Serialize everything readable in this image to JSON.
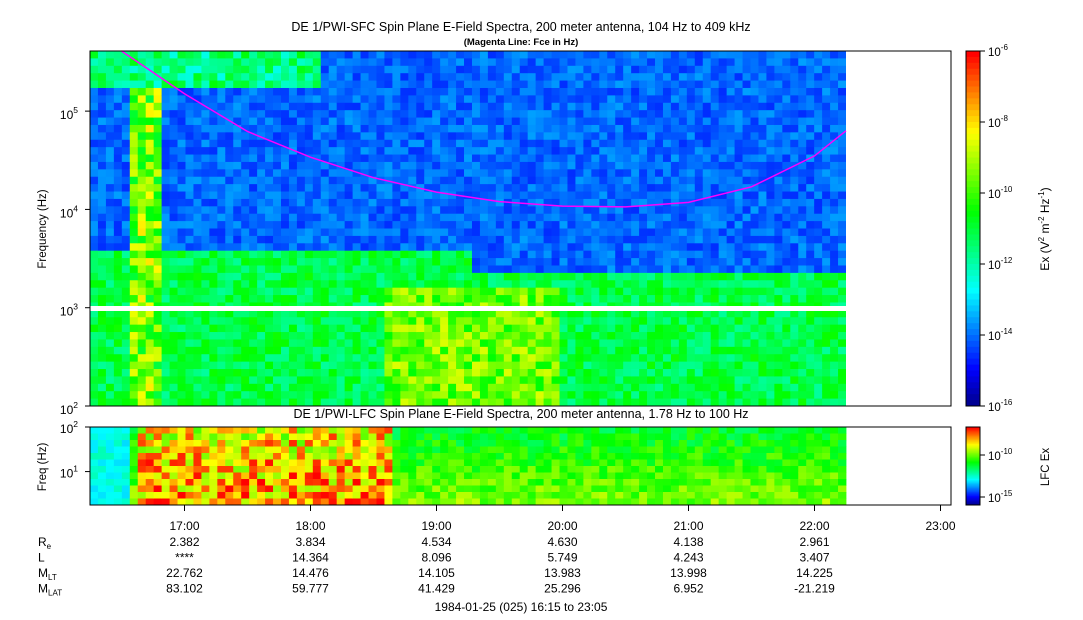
{
  "chart_data": [
    {
      "type": "heatmap",
      "title": "DE 1/PWI-SFC  Spin Plane E-Field Spectra, 200 meter antenna, 104 Hz to 409 kHz",
      "subtitle": "(Magenta Line: Fce in Hz)",
      "ylabel": "Frequency (Hz)",
      "yscale": "log",
      "ylim": [
        100,
        409000
      ],
      "yticks": [
        "10^2",
        "10^3",
        "10^4",
        "10^5"
      ],
      "colorbar": {
        "label": "Ex (V^2 m^-2 Hz^-1)",
        "scale": "log",
        "range": [
          1e-16,
          1e-06
        ],
        "ticks": [
          "10^-16",
          "10^-14",
          "10^-12",
          "10^-10",
          "10^-8",
          "10^-6"
        ]
      },
      "data_end_time": "22:15",
      "fce_line": {
        "name": "Fce",
        "color": "#ff00ff",
        "points": [
          {
            "t": "16:30",
            "f": 409000
          },
          {
            "t": "17:00",
            "f": 150000
          },
          {
            "t": "17:30",
            "f": 62000
          },
          {
            "t": "18:00",
            "f": 34000
          },
          {
            "t": "18:30",
            "f": 21000
          },
          {
            "t": "19:00",
            "f": 15000
          },
          {
            "t": "19:30",
            "f": 12000
          },
          {
            "t": "20:00",
            "f": 10800
          },
          {
            "t": "20:30",
            "f": 10600
          },
          {
            "t": "21:00",
            "f": 11800
          },
          {
            "t": "21:30",
            "f": 17000
          },
          {
            "t": "22:00",
            "f": 35000
          },
          {
            "t": "22:15",
            "f": 63000
          }
        ]
      }
    },
    {
      "type": "heatmap",
      "title": "DE 1/PWI-LFC  Spin Plane E-Field Spectra, 200 meter antenna, 1.78 Hz to 100 Hz",
      "ylabel": "Freq (Hz)",
      "yscale": "log",
      "ylim": [
        1.78,
        100
      ],
      "yticks": [
        "10^1",
        "10^2"
      ],
      "colorbar": {
        "label": "LFC Ex",
        "scale": "log",
        "ticks": [
          "10^-15",
          "10^-10"
        ]
      },
      "data_end_time": "22:15"
    }
  ],
  "time_axis": {
    "start": "16:15",
    "end": "23:05",
    "ticks": [
      "17:00",
      "18:00",
      "19:00",
      "20:00",
      "21:00",
      "22:00",
      "23:00"
    ]
  },
  "ephemeris": {
    "rows": [
      {
        "label": "R",
        "sub": "e",
        "values": [
          "2.382",
          "3.834",
          "4.534",
          "4.630",
          "4.138",
          "2.961"
        ]
      },
      {
        "label": "L",
        "sub": "",
        "values": [
          "****",
          "14.364",
          "8.096",
          "5.749",
          "4.243",
          "3.407"
        ]
      },
      {
        "label": "M",
        "sub": "LT",
        "values": [
          "22.762",
          "14.476",
          "14.105",
          "13.983",
          "13.998",
          "14.225"
        ]
      },
      {
        "label": "M",
        "sub": "LAT",
        "values": [
          "83.102",
          "59.777",
          "41.429",
          "25.296",
          "6.952",
          "-21.219"
        ]
      }
    ]
  },
  "footer": "1984-01-25 (025) 16:15 to 23:05",
  "palette": [
    "#000080",
    "#0000ff",
    "#0080ff",
    "#00ffff",
    "#00ff80",
    "#00ff00",
    "#80ff00",
    "#ffff00",
    "#ff8000",
    "#ff0000"
  ]
}
